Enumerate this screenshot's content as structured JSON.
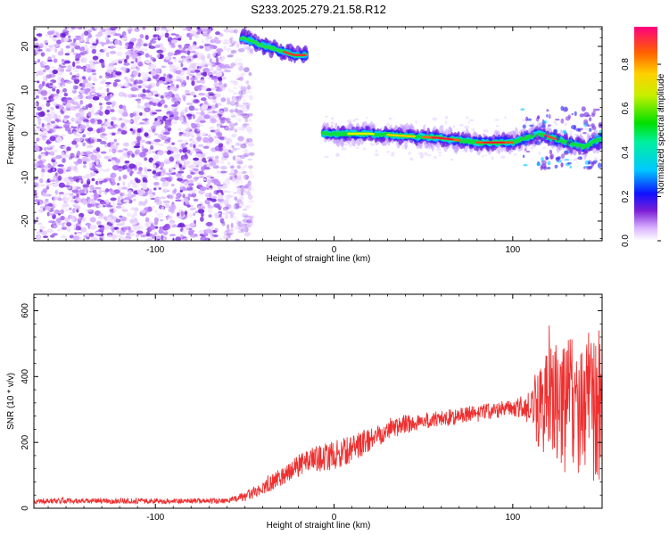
{
  "title": "S233.2025.279.21.58.R12",
  "chart_data": [
    {
      "type": "heatmap",
      "xlabel": "Height of straight line (km)",
      "ylabel": "Frequency (Hz)",
      "xlim": [
        -168,
        150
      ],
      "ylim": [
        -24.5,
        24.5
      ],
      "x_ticks": [
        -100,
        0,
        100
      ],
      "y_ticks": [
        -20,
        -10,
        0,
        10,
        20
      ],
      "colorbar": {
        "label": "Normalized spectral amplitude",
        "range": [
          0,
          0.97
        ],
        "ticks": [
          0.0,
          0.2,
          0.4,
          0.6,
          0.8
        ]
      },
      "features": {
        "noise_field_x": [
          -168,
          -52
        ],
        "upper_track": [
          [
            -52,
            22
          ],
          [
            -45,
            21
          ],
          [
            -38,
            20
          ],
          [
            -30,
            19
          ],
          [
            -22,
            18
          ],
          [
            -15,
            18
          ]
        ],
        "main_track": [
          [
            -6,
            0
          ],
          [
            20,
            0
          ],
          [
            40,
            -0.5
          ],
          [
            60,
            -1
          ],
          [
            80,
            -2
          ],
          [
            100,
            -2
          ],
          [
            115,
            0
          ],
          [
            130,
            -2
          ],
          [
            140,
            -3
          ],
          [
            150,
            -1
          ]
        ]
      }
    },
    {
      "type": "line",
      "xlabel": "Height of straight line (km)",
      "ylabel": "SNR (10 * v/v)",
      "xlim": [
        -168,
        150
      ],
      "ylim": [
        0,
        650
      ],
      "x_ticks": [
        -100,
        0,
        100
      ],
      "y_ticks": [
        0,
        200,
        400,
        600
      ],
      "color": "#ee3030",
      "trend": [
        [
          -168,
          22
        ],
        [
          -60,
          22
        ],
        [
          -50,
          35
        ],
        [
          -40,
          60
        ],
        [
          -30,
          95
        ],
        [
          -20,
          130
        ],
        [
          -10,
          150
        ],
        [
          0,
          160
        ],
        [
          10,
          180
        ],
        [
          20,
          210
        ],
        [
          30,
          240
        ],
        [
          40,
          255
        ],
        [
          50,
          265
        ],
        [
          60,
          272
        ],
        [
          70,
          280
        ],
        [
          80,
          290
        ],
        [
          90,
          298
        ],
        [
          100,
          305
        ],
        [
          110,
          310
        ],
        [
          120,
          320
        ],
        [
          130,
          320
        ],
        [
          140,
          315
        ],
        [
          150,
          310
        ]
      ],
      "noise_amplitude": [
        [
          -168,
          8
        ],
        [
          -60,
          8
        ],
        [
          -50,
          15
        ],
        [
          0,
          45
        ],
        [
          50,
          25
        ],
        [
          100,
          25
        ],
        [
          110,
          45
        ],
        [
          115,
          150
        ],
        [
          130,
          200
        ],
        [
          150,
          240
        ]
      ]
    }
  ]
}
